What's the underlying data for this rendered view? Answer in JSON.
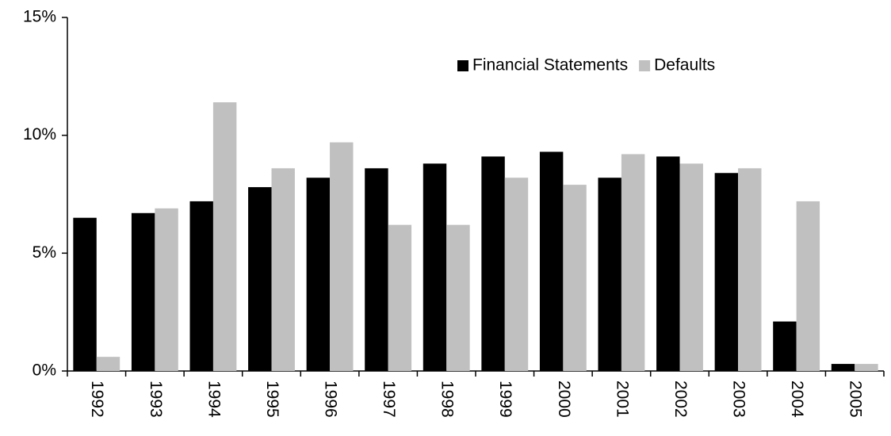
{
  "chart_data": {
    "type": "bar",
    "categories": [
      "1992",
      "1993",
      "1994",
      "1995",
      "1996",
      "1997",
      "1998",
      "1999",
      "2000",
      "2001",
      "2002",
      "2003",
      "2004",
      "2005"
    ],
    "series": [
      {
        "name": "Financial Statements",
        "color": "#000000",
        "values": [
          6.5,
          6.7,
          7.2,
          7.8,
          8.2,
          8.6,
          8.8,
          9.1,
          9.3,
          8.2,
          9.1,
          8.4,
          2.1,
          0.3
        ]
      },
      {
        "name": "Defaults",
        "color": "#c0c0c0",
        "values": [
          0.6,
          6.9,
          11.4,
          8.6,
          9.7,
          6.2,
          6.2,
          8.2,
          7.9,
          9.2,
          8.8,
          8.6,
          7.2,
          0.3
        ]
      }
    ],
    "ylim": [
      0,
      15
    ],
    "yticks": [
      {
        "value": 0,
        "label": "0%"
      },
      {
        "value": 5,
        "label": "5%"
      },
      {
        "value": 10,
        "label": "10%"
      },
      {
        "value": 15,
        "label": "15%"
      }
    ],
    "grid": false,
    "legend": "top-right"
  }
}
